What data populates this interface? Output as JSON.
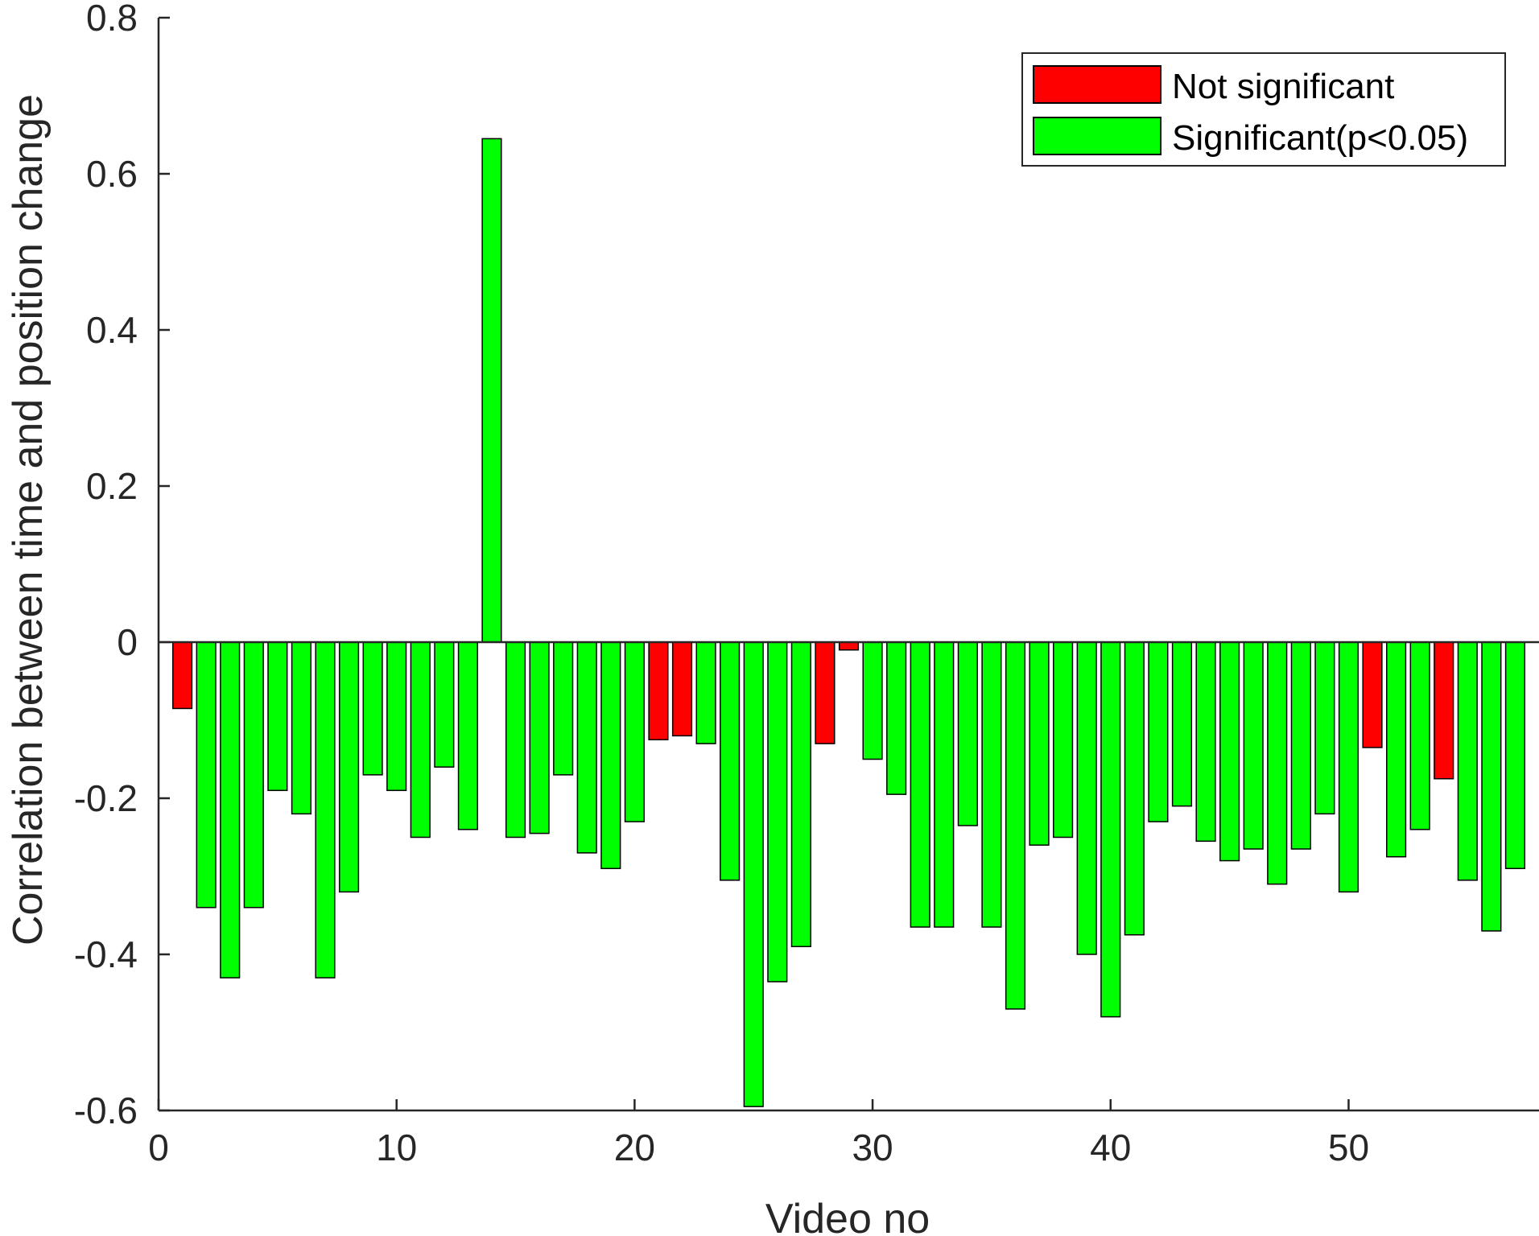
{
  "chart_data": {
    "type": "bar",
    "title": "",
    "xlabel": "Video no",
    "ylabel": "Correlation between time and position change",
    "xlim": [
      0,
      58
    ],
    "ylim": [
      -0.6,
      0.8
    ],
    "xticks": [
      0,
      10,
      20,
      30,
      40,
      50
    ],
    "yticks": [
      -0.6,
      -0.4,
      -0.2,
      0,
      0.2,
      0.4,
      0.6,
      0.8
    ],
    "xtick_labels": [
      "0",
      "10",
      "20",
      "30",
      "40",
      "50"
    ],
    "ytick_labels": [
      "-0.6",
      "-0.4",
      "-0.2",
      "0",
      "0.2",
      "0.4",
      "0.6",
      "0.8"
    ],
    "grid": false,
    "legend": {
      "placement": "top-right",
      "entries": [
        {
          "label": "Not significant",
          "color": "#ff0000"
        },
        {
          "label": "Significant(p<0.05)",
          "color": "#00ff00"
        }
      ]
    },
    "colors": {
      "not_significant": "#ff0000",
      "significant": "#00ff00"
    },
    "x": [
      1,
      2,
      3,
      4,
      5,
      6,
      7,
      8,
      9,
      10,
      11,
      12,
      13,
      14,
      15,
      16,
      17,
      18,
      19,
      20,
      21,
      22,
      23,
      24,
      25,
      26,
      27,
      28,
      29,
      30,
      31,
      32,
      33,
      34,
      35,
      36,
      37,
      38,
      39,
      40,
      41,
      42,
      43,
      44,
      45,
      46,
      47,
      48,
      49,
      50,
      51,
      52,
      53,
      54,
      55,
      56,
      57
    ],
    "values": [
      -0.085,
      -0.34,
      -0.43,
      -0.34,
      -0.19,
      -0.22,
      -0.43,
      -0.32,
      -0.17,
      -0.19,
      -0.25,
      -0.16,
      -0.24,
      0.645,
      -0.25,
      -0.245,
      -0.17,
      -0.27,
      -0.29,
      -0.23,
      -0.125,
      -0.12,
      -0.13,
      -0.305,
      -0.595,
      -0.435,
      -0.39,
      -0.13,
      -0.01,
      -0.15,
      -0.195,
      -0.365,
      -0.365,
      -0.235,
      -0.365,
      -0.47,
      -0.26,
      -0.25,
      -0.4,
      -0.48,
      -0.375,
      -0.23,
      -0.21,
      -0.255,
      -0.28,
      -0.265,
      -0.31,
      -0.265,
      -0.22,
      -0.32,
      -0.135,
      -0.275,
      -0.24,
      -0.175,
      -0.305,
      -0.37,
      -0.29
    ],
    "significant": [
      false,
      true,
      true,
      true,
      true,
      true,
      true,
      true,
      true,
      true,
      true,
      true,
      true,
      true,
      true,
      true,
      true,
      true,
      true,
      true,
      false,
      false,
      true,
      true,
      true,
      true,
      true,
      false,
      false,
      true,
      true,
      true,
      true,
      true,
      true,
      true,
      true,
      true,
      true,
      true,
      true,
      true,
      true,
      true,
      true,
      true,
      true,
      true,
      true,
      true,
      false,
      true,
      true,
      false,
      true,
      true,
      true
    ]
  }
}
